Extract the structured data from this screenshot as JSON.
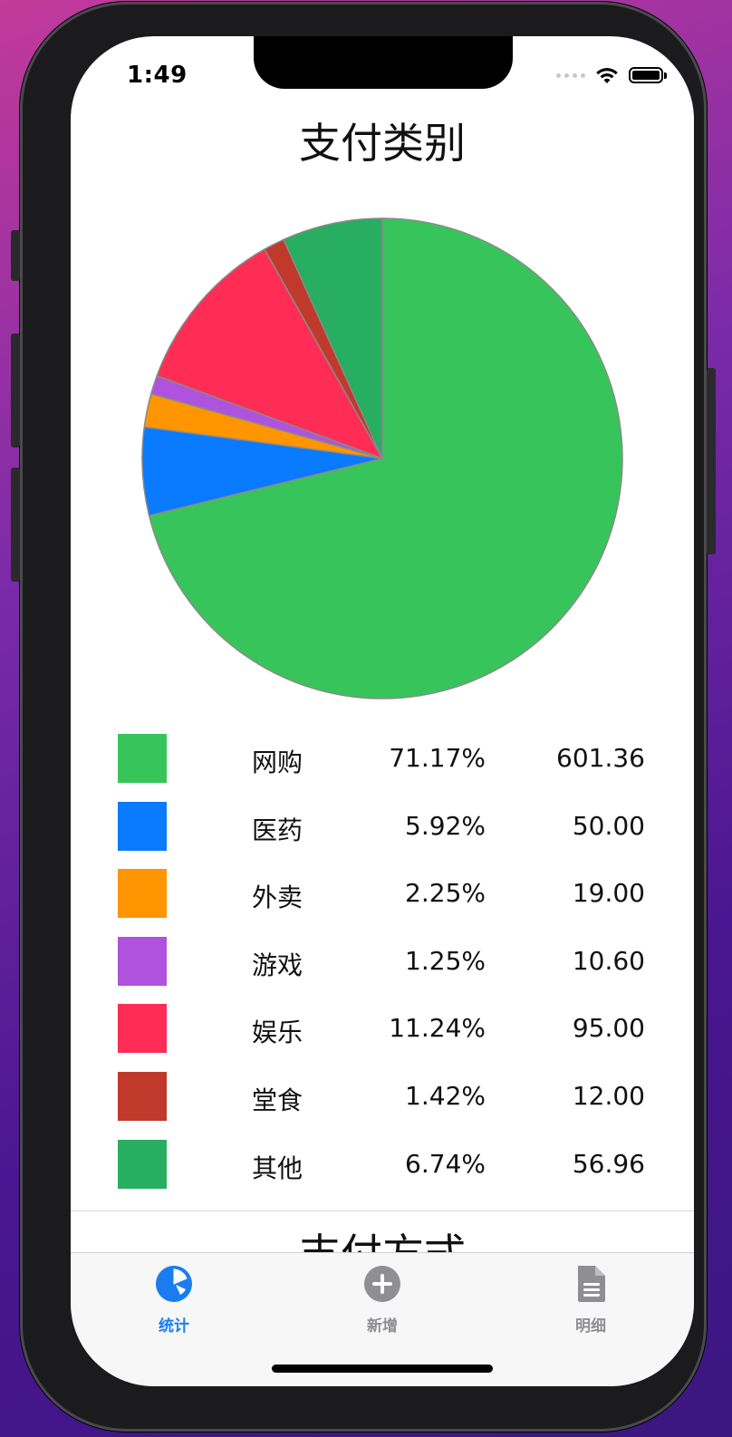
{
  "status_bar": {
    "time": "1:49"
  },
  "page": {
    "title": "支付类别",
    "next_section_title": "支付方式"
  },
  "chart_data": {
    "type": "pie",
    "title": "支付类别",
    "start_angle": "top",
    "direction": "clockwise",
    "slices": [
      {
        "label": "网购",
        "percent": "71.17%",
        "value": 601.36,
        "amount": "601.36",
        "color": "#37c55b"
      },
      {
        "label": "医药",
        "percent": "5.92%",
        "value": 50.0,
        "amount": "50.00",
        "color": "#0a7aff"
      },
      {
        "label": "外卖",
        "percent": "2.25%",
        "value": 19.0,
        "amount": "19.00",
        "color": "#ff9500"
      },
      {
        "label": "游戏",
        "percent": "1.25%",
        "value": 10.6,
        "amount": "10.60",
        "color": "#af52de"
      },
      {
        "label": "娱乐",
        "percent": "11.24%",
        "value": 95.0,
        "amount": "95.00",
        "color": "#ff2d55"
      },
      {
        "label": "堂食",
        "percent": "1.42%",
        "value": 12.0,
        "amount": "12.00",
        "color": "#c0392b"
      },
      {
        "label": "其他",
        "percent": "6.74%",
        "value": 56.96,
        "amount": "56.96",
        "color": "#27ae60"
      }
    ]
  },
  "tabbar": {
    "tabs": [
      {
        "label": "统计",
        "icon": "pie-chart-icon",
        "active": true
      },
      {
        "label": "新增",
        "icon": "plus-circle-icon",
        "active": false
      },
      {
        "label": "明细",
        "icon": "document-icon",
        "active": false
      }
    ],
    "active_color": "#1a7cf0",
    "inactive_color": "#8e8e93"
  }
}
